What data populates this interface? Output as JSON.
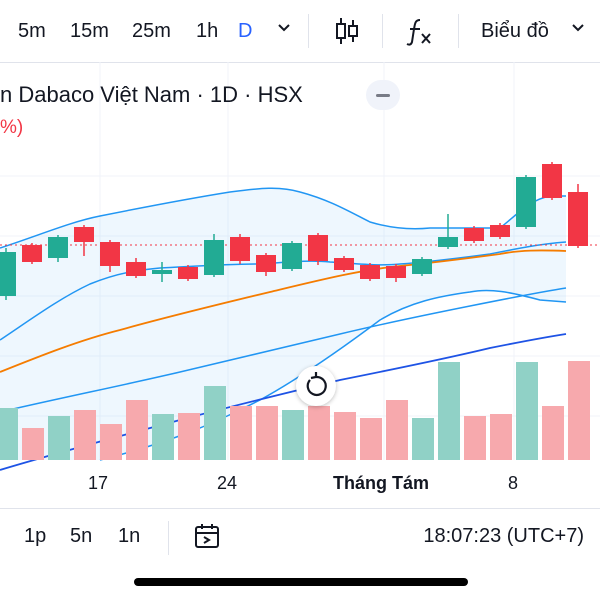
{
  "toolbar": {
    "timeframes": [
      "5m",
      "15m",
      "25m",
      "1h",
      "D"
    ],
    "active_timeframe": "D",
    "chart_type_label": "Biểu đồ",
    "icons": [
      "chevron-down-icon",
      "candlestick-icon",
      "indicators-fx-icon",
      "chevron-down-icon"
    ]
  },
  "legend": {
    "title": "n Dabaco Việt Nam · 1D · HSX",
    "subline": "%)"
  },
  "chart_data": {
    "type": "candlestick",
    "x_ticks": [
      "17",
      "24",
      "Tháng Tám",
      "8"
    ],
    "x_ticks_bold": [
      "Tháng Tám"
    ],
    "candles_note": "OHLC values are not printed on screen; only relative shape is shown.",
    "colors": {
      "up": "#22ab94",
      "down": "#f23645",
      "volume_up": "#90d1c6",
      "volume_down": "#f7a9ad",
      "bb_band": "#2196f3",
      "ma_orange": "#f57c00",
      "ma_blue": "#1e53e5",
      "price_line": "#f23645"
    }
  },
  "bottom": {
    "ranges": [
      "1p",
      "5n",
      "1n"
    ],
    "time": "18:07:23 (UTC+7)"
  }
}
